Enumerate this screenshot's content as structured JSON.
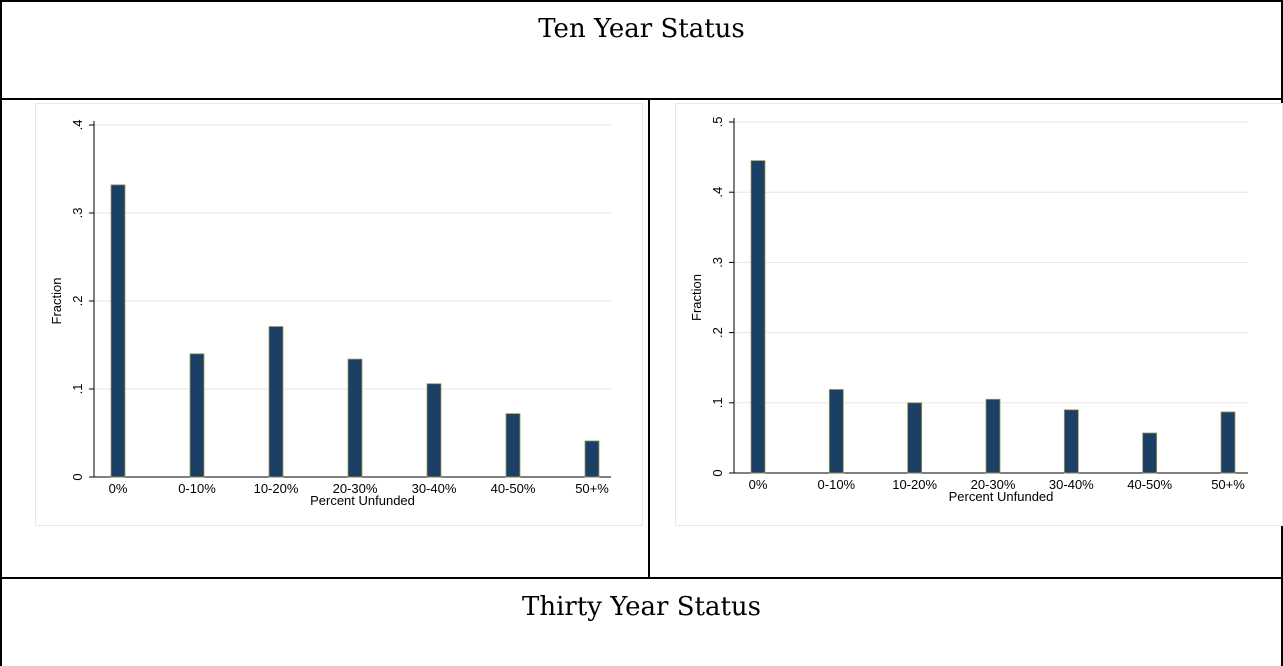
{
  "table": {
    "row1_heading": "Ten Year Status",
    "row2_heading": "Thirty Year Status"
  },
  "colors": {
    "bar": "#1c3f66",
    "bar_outline": "#9c9a55",
    "grid": "#e6e6e6",
    "panel_border": "#e8e8e8"
  },
  "chart_data": [
    {
      "type": "bar",
      "title": "",
      "xlabel": "Percent Unfunded",
      "ylabel": "Fraction",
      "categories": [
        "0%",
        "0-10%",
        "10-20%",
        "20-30%",
        "30-40%",
        "40-50%",
        "50+%"
      ],
      "values": [
        0.332,
        0.14,
        0.171,
        0.134,
        0.106,
        0.072,
        0.041
      ],
      "ylim": [
        0,
        0.4
      ],
      "yticks": [
        0,
        0.1,
        0.2,
        0.3,
        0.4
      ],
      "ytick_labels": [
        "0",
        ".1",
        ".2",
        ".3",
        ".4"
      ],
      "grid": true
    },
    {
      "type": "bar",
      "title": "",
      "xlabel": "Percent Unfunded",
      "ylabel": "Fraction",
      "categories": [
        "0%",
        "0-10%",
        "10-20%",
        "20-30%",
        "30-40%",
        "40-50%",
        "50+%"
      ],
      "values": [
        0.445,
        0.119,
        0.1,
        0.105,
        0.09,
        0.057,
        0.087
      ],
      "ylim": [
        0,
        0.5
      ],
      "yticks": [
        0,
        0.1,
        0.2,
        0.3,
        0.4,
        0.5
      ],
      "ytick_labels": [
        "0",
        ".1",
        ".2",
        ".3",
        ".4",
        ".5"
      ],
      "grid": true
    }
  ]
}
